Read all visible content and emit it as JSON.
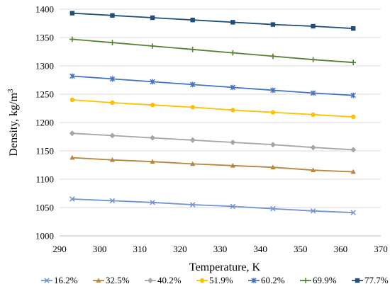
{
  "chart_data": {
    "type": "line",
    "title": "",
    "xlabel": "Temperature, K",
    "ylabel": "Density, kg/m",
    "ylabel_superscript": "3",
    "xlim": [
      290,
      370
    ],
    "ylim": [
      1000,
      1400
    ],
    "xticks": [
      "290",
      "300",
      "310",
      "320",
      "330",
      "340",
      "350",
      "360",
      "370"
    ],
    "yticks": [
      "1000",
      "1050",
      "1100",
      "1150",
      "1200",
      "1250",
      "1300",
      "1350",
      "1400"
    ],
    "grid": "horizontal",
    "legend_position": "bottom",
    "x": [
      293.15,
      303.15,
      313.15,
      323.15,
      333.15,
      343.15,
      353.15,
      363.15
    ],
    "series": [
      {
        "name": "16.2%",
        "color": "#6f93d4",
        "marker": "x",
        "values": [
          1065,
          1062,
          1059,
          1055,
          1052,
          1048,
          1044,
          1041
        ]
      },
      {
        "name": "32.5%",
        "color": "#b8863f",
        "marker": "triangle",
        "values": [
          1138,
          1134,
          1131,
          1127,
          1124,
          1121,
          1116,
          1113
        ]
      },
      {
        "name": "40.2%",
        "color": "#a5a5a5",
        "marker": "diamond",
        "values": [
          1181,
          1177,
          1173,
          1169,
          1165,
          1161,
          1156,
          1152
        ]
      },
      {
        "name": "51.9%",
        "color": "#ffc000",
        "marker": "circle",
        "values": [
          1240,
          1235,
          1231,
          1227,
          1222,
          1218,
          1214,
          1210
        ]
      },
      {
        "name": "60.2%",
        "color": "#4472c4",
        "marker": "star",
        "values": [
          1282,
          1277,
          1272,
          1267,
          1262,
          1257,
          1252,
          1248
        ]
      },
      {
        "name": "69.9%",
        "color": "#548235",
        "marker": "plus",
        "values": [
          1347,
          1341,
          1335,
          1329,
          1323,
          1317,
          1311,
          1306
        ]
      },
      {
        "name": "77.7%",
        "color": "#1f4e79",
        "marker": "square",
        "values": [
          1393,
          1389,
          1385,
          1381,
          1377,
          1373,
          1370,
          1366
        ]
      }
    ]
  }
}
